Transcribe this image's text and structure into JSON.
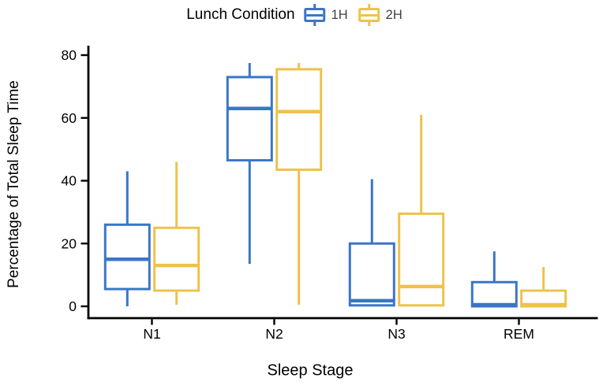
{
  "chart_data": {
    "type": "boxplot",
    "legend_title": "Lunch Condition",
    "legend_position": "top",
    "xlabel": "Sleep Stage",
    "ylabel": "Percentage of Total Sleep Time",
    "categories": [
      "N1",
      "N2",
      "N3",
      "REM"
    ],
    "yticks": [
      0,
      20,
      40,
      60,
      80
    ],
    "ylim": [
      0,
      80
    ],
    "grid": false,
    "axis_color": "#000000",
    "text_color": "#000000",
    "legend_label_color": "#3f3f3f",
    "series": [
      {
        "name": "1H",
        "color": "#3B76C6",
        "boxes": [
          {
            "category": "N1",
            "whisker_low": 0,
            "q1": 5.5,
            "median": 15,
            "q3": 26,
            "whisker_high": 43
          },
          {
            "category": "N2",
            "whisker_low": 13.5,
            "q1": 46.5,
            "median": 63,
            "q3": 73,
            "whisker_high": 77.5
          },
          {
            "category": "N3",
            "whisker_low": 0.3,
            "q1": 0.3,
            "median": 1.8,
            "q3": 20,
            "whisker_high": 40.5
          },
          {
            "category": "REM",
            "whisker_low": 0,
            "q1": 0,
            "median": 0.5,
            "q3": 7.7,
            "whisker_high": 17.5
          }
        ]
      },
      {
        "name": "2H",
        "color": "#EEC24A",
        "boxes": [
          {
            "category": "N1",
            "whisker_low": 0.5,
            "q1": 5,
            "median": 13,
            "q3": 25,
            "whisker_high": 46
          },
          {
            "category": "N2",
            "whisker_low": 0.5,
            "q1": 43.5,
            "median": 62,
            "q3": 75.5,
            "whisker_high": 77.5
          },
          {
            "category": "N3",
            "whisker_low": 0.3,
            "q1": 0.3,
            "median": 6.3,
            "q3": 29.5,
            "whisker_high": 61
          },
          {
            "category": "REM",
            "whisker_low": 0,
            "q1": 0,
            "median": 0.5,
            "q3": 5,
            "whisker_high": 12.5
          }
        ]
      }
    ]
  }
}
